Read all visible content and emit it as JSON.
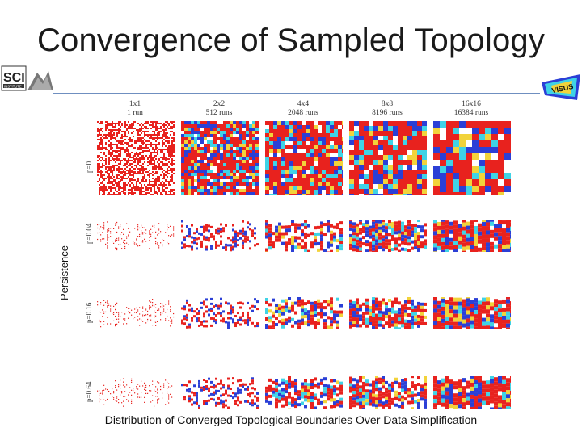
{
  "title": "Convergence of Sampled Topology",
  "logos": {
    "left_text": "SCI",
    "left_subtext": "INSTITUTE",
    "right_text": "VISUS"
  },
  "y_axis_label": "Persistence",
  "columns": [
    {
      "label": "1x1",
      "sub": "1 run"
    },
    {
      "label": "2x2",
      "sub": "512 runs"
    },
    {
      "label": "4x4",
      "sub": "2048 runs"
    },
    {
      "label": "8x8",
      "sub": "8196 runs"
    },
    {
      "label": "16x16",
      "sub": "16384 runs"
    }
  ],
  "rows": [
    {
      "label": "p=0"
    },
    {
      "label": "p=0.04"
    },
    {
      "label": "p=0.16"
    },
    {
      "label": "p=0.64"
    }
  ],
  "caption": "Distribution of Converged Topological Boundaries Over Data Simplification",
  "colors": {
    "red": "#e8221e",
    "blue": "#2b3fd6",
    "cyan": "#3fd3e6",
    "yellow": "#f2d33a",
    "rule": "#6f8fc0"
  }
}
